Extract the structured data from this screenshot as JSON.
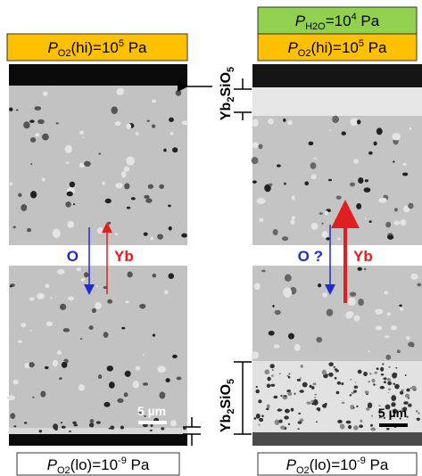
{
  "left": {
    "top_label": {
      "italic": "P",
      "sub": "O2",
      "text": "(hi)=10",
      "sup": "5",
      "unit": " Pa"
    },
    "bottom_label": {
      "italic": "P",
      "sub": "O2",
      "text": "(lo)=10",
      "sup": "-9",
      "unit": " Pa"
    },
    "arrow_o": "O",
    "arrow_yb": "Yb",
    "scale_bar": "5 µm"
  },
  "right": {
    "water_label": {
      "italic": "P",
      "sub": "H2O",
      "text": "=10",
      "sup": "4",
      "unit": " Pa"
    },
    "top_label": {
      "italic": "P",
      "sub": "O2",
      "text": "(hi)=10",
      "sup": "5",
      "unit": " Pa"
    },
    "bottom_label": {
      "italic": "P",
      "sub": "O2",
      "text": "(lo)=10",
      "sup": "-9",
      "unit": " Pa"
    },
    "arrow_o": "O ?",
    "arrow_yb": "Yb",
    "scale_bar": "5 µm"
  },
  "layer_labels": [
    {
      "a": "Yb",
      "b": "2",
      "c": "SiO",
      "d": "5"
    },
    {
      "a": "Yb",
      "b": "2",
      "c": "SiO",
      "d": "5"
    }
  ]
}
